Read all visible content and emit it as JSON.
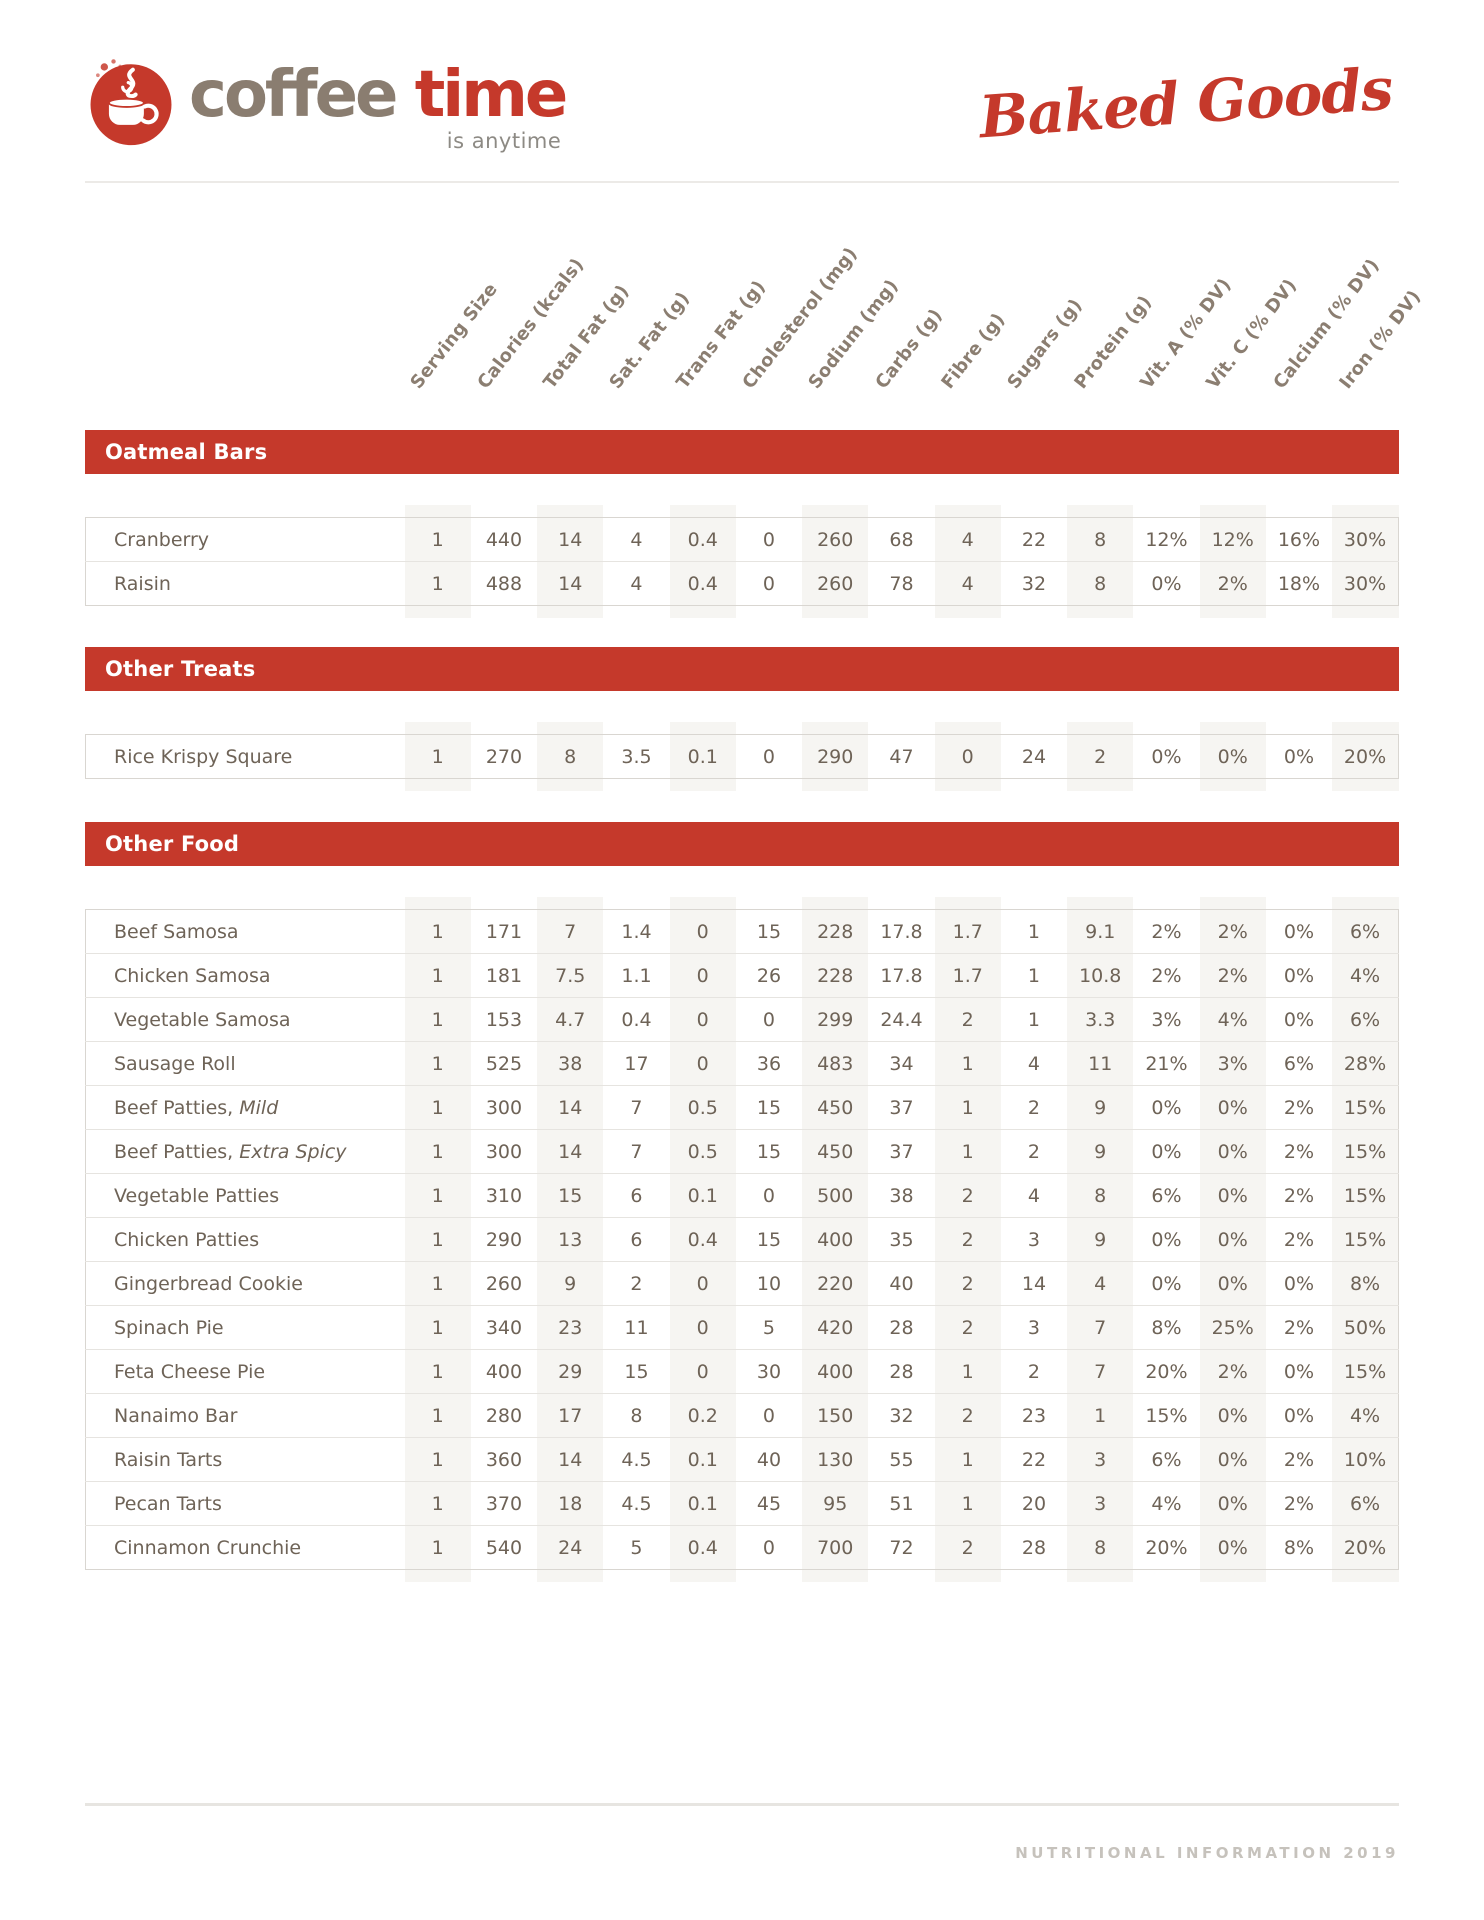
{
  "header": {
    "logo": {
      "icon": "coffee-cup-icon",
      "word1": "coffee",
      "word2": "time",
      "tagline": "is anytime"
    },
    "title_script": "Baked Goods"
  },
  "table": {
    "columns": [
      "Serving Size",
      "Calories (kcals)",
      "Total Fat (g)",
      "Sat. Fat (g)",
      "Trans Fat (g)",
      "Cholesterol (mg)",
      "Sodium (mg)",
      "Carbs (g)",
      "Fibre (g)",
      "Sugars (g)",
      "Protein (g)",
      "Vit. A (% DV)",
      "Vit. C (% DV)",
      "Calcium (% DV)",
      "Iron (% DV)"
    ]
  },
  "sections": [
    {
      "title": "Oatmeal Bars",
      "rows": [
        {
          "label": "Cranberry",
          "values": [
            "1",
            "440",
            "14",
            "4",
            "0.4",
            "0",
            "260",
            "68",
            "4",
            "22",
            "8",
            "12%",
            "12%",
            "16%",
            "30%"
          ]
        },
        {
          "label": "Raisin",
          "values": [
            "1",
            "488",
            "14",
            "4",
            "0.4",
            "0",
            "260",
            "78",
            "4",
            "32",
            "8",
            "0%",
            "2%",
            "18%",
            "30%"
          ]
        }
      ]
    },
    {
      "title": "Other Treats",
      "rows": [
        {
          "label": "Rice Krispy Square",
          "values": [
            "1",
            "270",
            "8",
            "3.5",
            "0.1",
            "0",
            "290",
            "47",
            "0",
            "24",
            "2",
            "0%",
            "0%",
            "0%",
            "20%"
          ]
        }
      ]
    },
    {
      "title": "Other Food",
      "rows": [
        {
          "label": "Beef Samosa",
          "values": [
            "1",
            "171",
            "7",
            "1.4",
            "0",
            "15",
            "228",
            "17.8",
            "1.7",
            "1",
            "9.1",
            "2%",
            "2%",
            "0%",
            "6%"
          ]
        },
        {
          "label": "Chicken Samosa",
          "values": [
            "1",
            "181",
            "7.5",
            "1.1",
            "0",
            "26",
            "228",
            "17.8",
            "1.7",
            "1",
            "10.8",
            "2%",
            "2%",
            "0%",
            "4%"
          ]
        },
        {
          "label": "Vegetable Samosa",
          "values": [
            "1",
            "153",
            "4.7",
            "0.4",
            "0",
            "0",
            "299",
            "24.4",
            "2",
            "1",
            "3.3",
            "3%",
            "4%",
            "0%",
            "6%"
          ]
        },
        {
          "label": "Sausage Roll",
          "values": [
            "1",
            "525",
            "38",
            "17",
            "0",
            "36",
            "483",
            "34",
            "1",
            "4",
            "11",
            "21%",
            "3%",
            "6%",
            "28%"
          ]
        },
        {
          "label": "Beef Patties, ",
          "label_italic": "Mild",
          "values": [
            "1",
            "300",
            "14",
            "7",
            "0.5",
            "15",
            "450",
            "37",
            "1",
            "2",
            "9",
            "0%",
            "0%",
            "2%",
            "15%"
          ]
        },
        {
          "label": "Beef Patties, ",
          "label_italic": "Extra Spicy",
          "values": [
            "1",
            "300",
            "14",
            "7",
            "0.5",
            "15",
            "450",
            "37",
            "1",
            "2",
            "9",
            "0%",
            "0%",
            "2%",
            "15%"
          ]
        },
        {
          "label": "Vegetable Patties",
          "values": [
            "1",
            "310",
            "15",
            "6",
            "0.1",
            "0",
            "500",
            "38",
            "2",
            "4",
            "8",
            "6%",
            "0%",
            "2%",
            "15%"
          ]
        },
        {
          "label": "Chicken Patties",
          "values": [
            "1",
            "290",
            "13",
            "6",
            "0.4",
            "15",
            "400",
            "35",
            "2",
            "3",
            "9",
            "0%",
            "0%",
            "2%",
            "15%"
          ]
        },
        {
          "label": "Gingerbread Cookie",
          "values": [
            "1",
            "260",
            "9",
            "2",
            "0",
            "10",
            "220",
            "40",
            "2",
            "14",
            "4",
            "0%",
            "0%",
            "0%",
            "8%"
          ]
        },
        {
          "label": "Spinach Pie",
          "values": [
            "1",
            "340",
            "23",
            "11",
            "0",
            "5",
            "420",
            "28",
            "2",
            "3",
            "7",
            "8%",
            "25%",
            "2%",
            "50%"
          ]
        },
        {
          "label": "Feta Cheese Pie",
          "values": [
            "1",
            "400",
            "29",
            "15",
            "0",
            "30",
            "400",
            "28",
            "1",
            "2",
            "7",
            "20%",
            "2%",
            "0%",
            "15%"
          ]
        },
        {
          "label": "Nanaimo Bar",
          "values": [
            "1",
            "280",
            "17",
            "8",
            "0.2",
            "0",
            "150",
            "32",
            "2",
            "23",
            "1",
            "15%",
            "0%",
            "0%",
            "4%"
          ]
        },
        {
          "label": "Raisin Tarts",
          "values": [
            "1",
            "360",
            "14",
            "4.5",
            "0.1",
            "40",
            "130",
            "55",
            "1",
            "22",
            "3",
            "6%",
            "0%",
            "2%",
            "10%"
          ]
        },
        {
          "label": "Pecan Tarts",
          "values": [
            "1",
            "370",
            "18",
            "4.5",
            "0.1",
            "45",
            "95",
            "51",
            "1",
            "20",
            "3",
            "4%",
            "0%",
            "2%",
            "6%"
          ]
        },
        {
          "label": "Cinnamon Crunchie",
          "values": [
            "1",
            "540",
            "24",
            "5",
            "0.4",
            "0",
            "700",
            "72",
            "2",
            "28",
            "8",
            "20%",
            "0%",
            "8%",
            "20%"
          ]
        }
      ]
    }
  ],
  "footer": {
    "text": "NUTRITIONAL INFORMATION 2019"
  },
  "colors": {
    "accent_red": "#c5392b",
    "wordmark_brown": "#8a7d70",
    "body_text": "#6e6357",
    "column_header_text": "#8b7e71",
    "column_shade": "#f6f5f2",
    "row_border": "#e6e4e0",
    "footer_text": "#c6c2bc"
  }
}
